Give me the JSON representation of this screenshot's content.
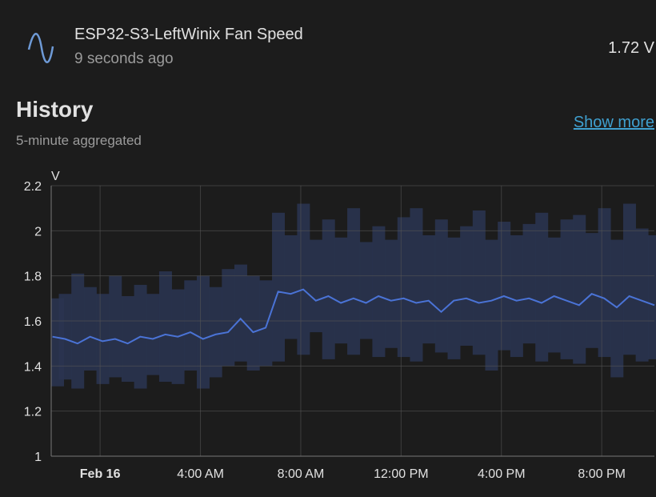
{
  "header": {
    "title": "ESP32-S3-LeftWinix Fan Speed",
    "updated": "9 seconds ago",
    "state": "1.72 V"
  },
  "history": {
    "title": "History",
    "subtitle": "5-minute aggregated",
    "link": "Show more"
  },
  "chart_data": {
    "type": "line",
    "y_label": "V",
    "grid": true,
    "x": [
      -1.9,
      -1.4,
      -0.9,
      -0.4,
      0.1,
      0.6,
      1.1,
      1.6,
      2.1,
      2.6,
      3.1,
      3.6,
      4.1,
      4.6,
      5.1,
      5.6,
      6.1,
      6.6,
      7.1,
      7.6,
      8.1,
      8.6,
      9.1,
      9.6,
      10.1,
      10.6,
      11.1,
      11.6,
      12.1,
      12.6,
      13.1,
      13.6,
      14.1,
      14.6,
      15.1,
      15.6,
      16.1,
      16.6,
      17.1,
      17.6,
      18.1,
      18.6,
      19.1,
      19.6,
      20.1,
      20.6,
      21.1,
      21.6,
      22.1
    ],
    "series": [
      {
        "color": "#4a73d6",
        "values": [
          1.53,
          1.52,
          1.5,
          1.53,
          1.51,
          1.52,
          1.5,
          1.53,
          1.52,
          1.54,
          1.53,
          1.55,
          1.52,
          1.54,
          1.55,
          1.61,
          1.55,
          1.57,
          1.73,
          1.72,
          1.74,
          1.69,
          1.71,
          1.68,
          1.7,
          1.68,
          1.71,
          1.69,
          1.7,
          1.68,
          1.69,
          1.64,
          1.69,
          1.7,
          1.68,
          1.69,
          1.71,
          1.69,
          1.7,
          1.68,
          1.71,
          1.69,
          1.67,
          1.72,
          1.7,
          1.66,
          1.71,
          1.69,
          1.67
        ]
      }
    ],
    "band": {
      "color": "#2a3450",
      "low": [
        1.31,
        1.34,
        1.3,
        1.38,
        1.32,
        1.35,
        1.33,
        1.3,
        1.36,
        1.33,
        1.32,
        1.38,
        1.3,
        1.35,
        1.4,
        1.42,
        1.38,
        1.4,
        1.42,
        1.52,
        1.45,
        1.55,
        1.43,
        1.5,
        1.45,
        1.52,
        1.44,
        1.48,
        1.44,
        1.42,
        1.5,
        1.46,
        1.43,
        1.49,
        1.45,
        1.38,
        1.47,
        1.44,
        1.5,
        1.42,
        1.46,
        1.43,
        1.41,
        1.48,
        1.44,
        1.35,
        1.45,
        1.42,
        1.43
      ],
      "high": [
        1.7,
        1.72,
        1.81,
        1.75,
        1.72,
        1.8,
        1.71,
        1.76,
        1.72,
        1.82,
        1.74,
        1.78,
        1.8,
        1.75,
        1.83,
        1.85,
        1.8,
        1.78,
        2.08,
        1.98,
        2.12,
        1.96,
        2.05,
        1.97,
        2.1,
        1.95,
        2.02,
        1.96,
        2.06,
        2.1,
        1.98,
        2.05,
        1.97,
        2.02,
        2.09,
        1.96,
        2.04,
        1.98,
        2.03,
        2.08,
        1.97,
        2.05,
        2.07,
        1.99,
        2.1,
        1.96,
        2.12,
        2.01,
        1.98
      ]
    },
    "xlim": [
      -1.95,
      22.1
    ],
    "ylim": [
      1,
      2.2
    ],
    "xticks": [
      {
        "value": 0,
        "label": "Feb 16"
      },
      {
        "value": 4,
        "label": "4:00 AM"
      },
      {
        "value": 8,
        "label": "8:00 AM"
      },
      {
        "value": 12,
        "label": "12:00 PM"
      },
      {
        "value": 16,
        "label": "4:00 PM"
      },
      {
        "value": 20,
        "label": "8:00 PM"
      }
    ],
    "yticks": [
      1,
      1.2,
      1.4,
      1.6,
      1.8,
      2,
      2.2
    ]
  }
}
